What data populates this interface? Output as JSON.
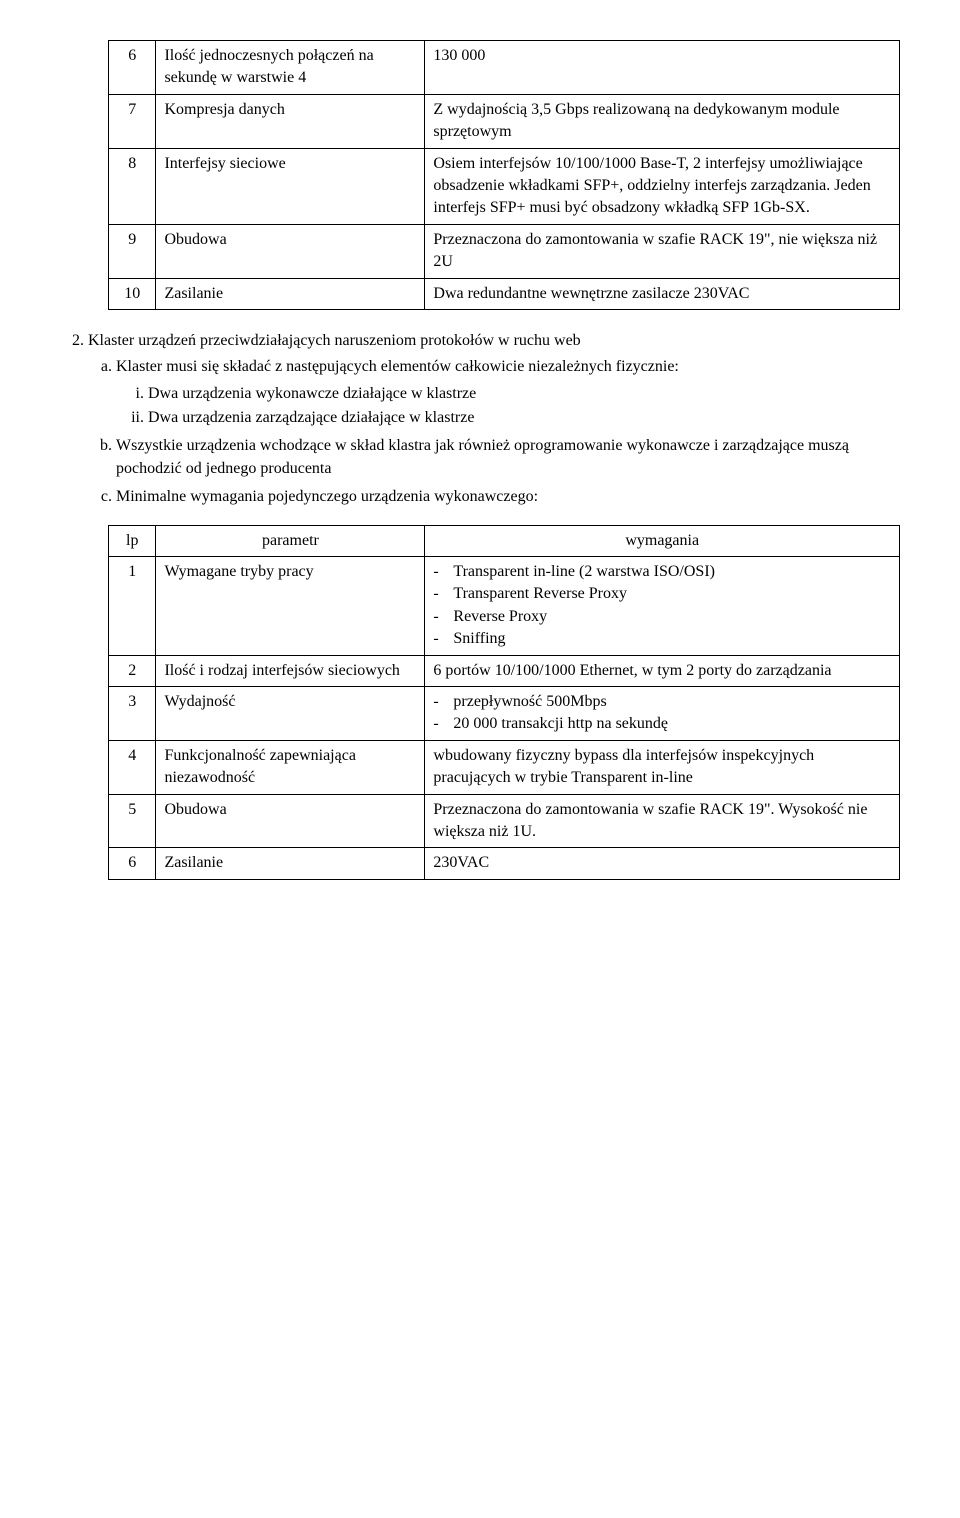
{
  "table1": {
    "rows": [
      {
        "lp": "6",
        "param": "Ilość jednoczesnych połączeń na sekundę w warstwie 4",
        "req": "130 000"
      },
      {
        "lp": "7",
        "param": "Kompresja danych",
        "req": "Z wydajnością 3,5 Gbps realizowaną na dedykowanym module sprzętowym"
      },
      {
        "lp": "8",
        "param": "Interfejsy sieciowe",
        "req": "Osiem interfejsów 10/100/1000 Base-T, 2 interfejsy umożliwiające obsadzenie wkładkami SFP+, oddzielny interfejs zarządzania. Jeden interfejs SFP+ musi być obsadzony wkładką SFP 1Gb-SX."
      },
      {
        "lp": "9",
        "param": "Obudowa",
        "req": "Przeznaczona do zamontowania w szafie RACK 19\", nie większa niż 2U"
      },
      {
        "lp": "10",
        "param": "Zasilanie",
        "req": "Dwa redundantne wewnętrzne zasilacze 230VAC"
      }
    ]
  },
  "section2": {
    "title": "Klaster urządzeń przeciwdziałających naruszeniom protokołów w ruchu web",
    "a": {
      "text": "Klaster musi się składać z następujących elementów całkowicie niezależnych fizycznie:",
      "i": "Dwa urządzenia wykonawcze działające w klastrze",
      "ii": "Dwa urządzenia zarządzające działające w klastrze"
    },
    "b": "Wszystkie urządzenia wchodzące w skład klastra jak również oprogramowanie wykonawcze i zarządzające muszą pochodzić od jednego producenta",
    "c": "Minimalne wymagania pojedynczego urządzenia wykonawczego:"
  },
  "table2": {
    "head_lp": "lp",
    "head_param": "parametr",
    "head_req": "wymagania",
    "rows": [
      {
        "lp": "1",
        "param": "Wymagane tryby pracy",
        "req_list": [
          "Transparent in-line (2 warstwa ISO/OSI)",
          "Transparent Reverse Proxy",
          "Reverse Proxy",
          "Sniffing"
        ]
      },
      {
        "lp": "2",
        "param": "Ilość i rodzaj interfejsów sieciowych",
        "req": "6 portów 10/100/1000 Ethernet, w tym 2 porty do zarządzania"
      },
      {
        "lp": "3",
        "param": "Wydajność",
        "req_list": [
          "przepływność 500Mbps",
          "20 000 transakcji http na sekundę"
        ]
      },
      {
        "lp": "4",
        "param": "Funkcjonalność zapewniająca niezawodność",
        "req": "wbudowany fizyczny bypass dla interfejsów inspekcyjnych pracujących w trybie Transparent in-line"
      },
      {
        "lp": "5",
        "param": "Obudowa",
        "req": "Przeznaczona do zamontowania w szafie RACK 19\". Wysokość nie większa niż 1U."
      },
      {
        "lp": "6",
        "param": "Zasilanie",
        "req": "230VAC"
      }
    ]
  }
}
